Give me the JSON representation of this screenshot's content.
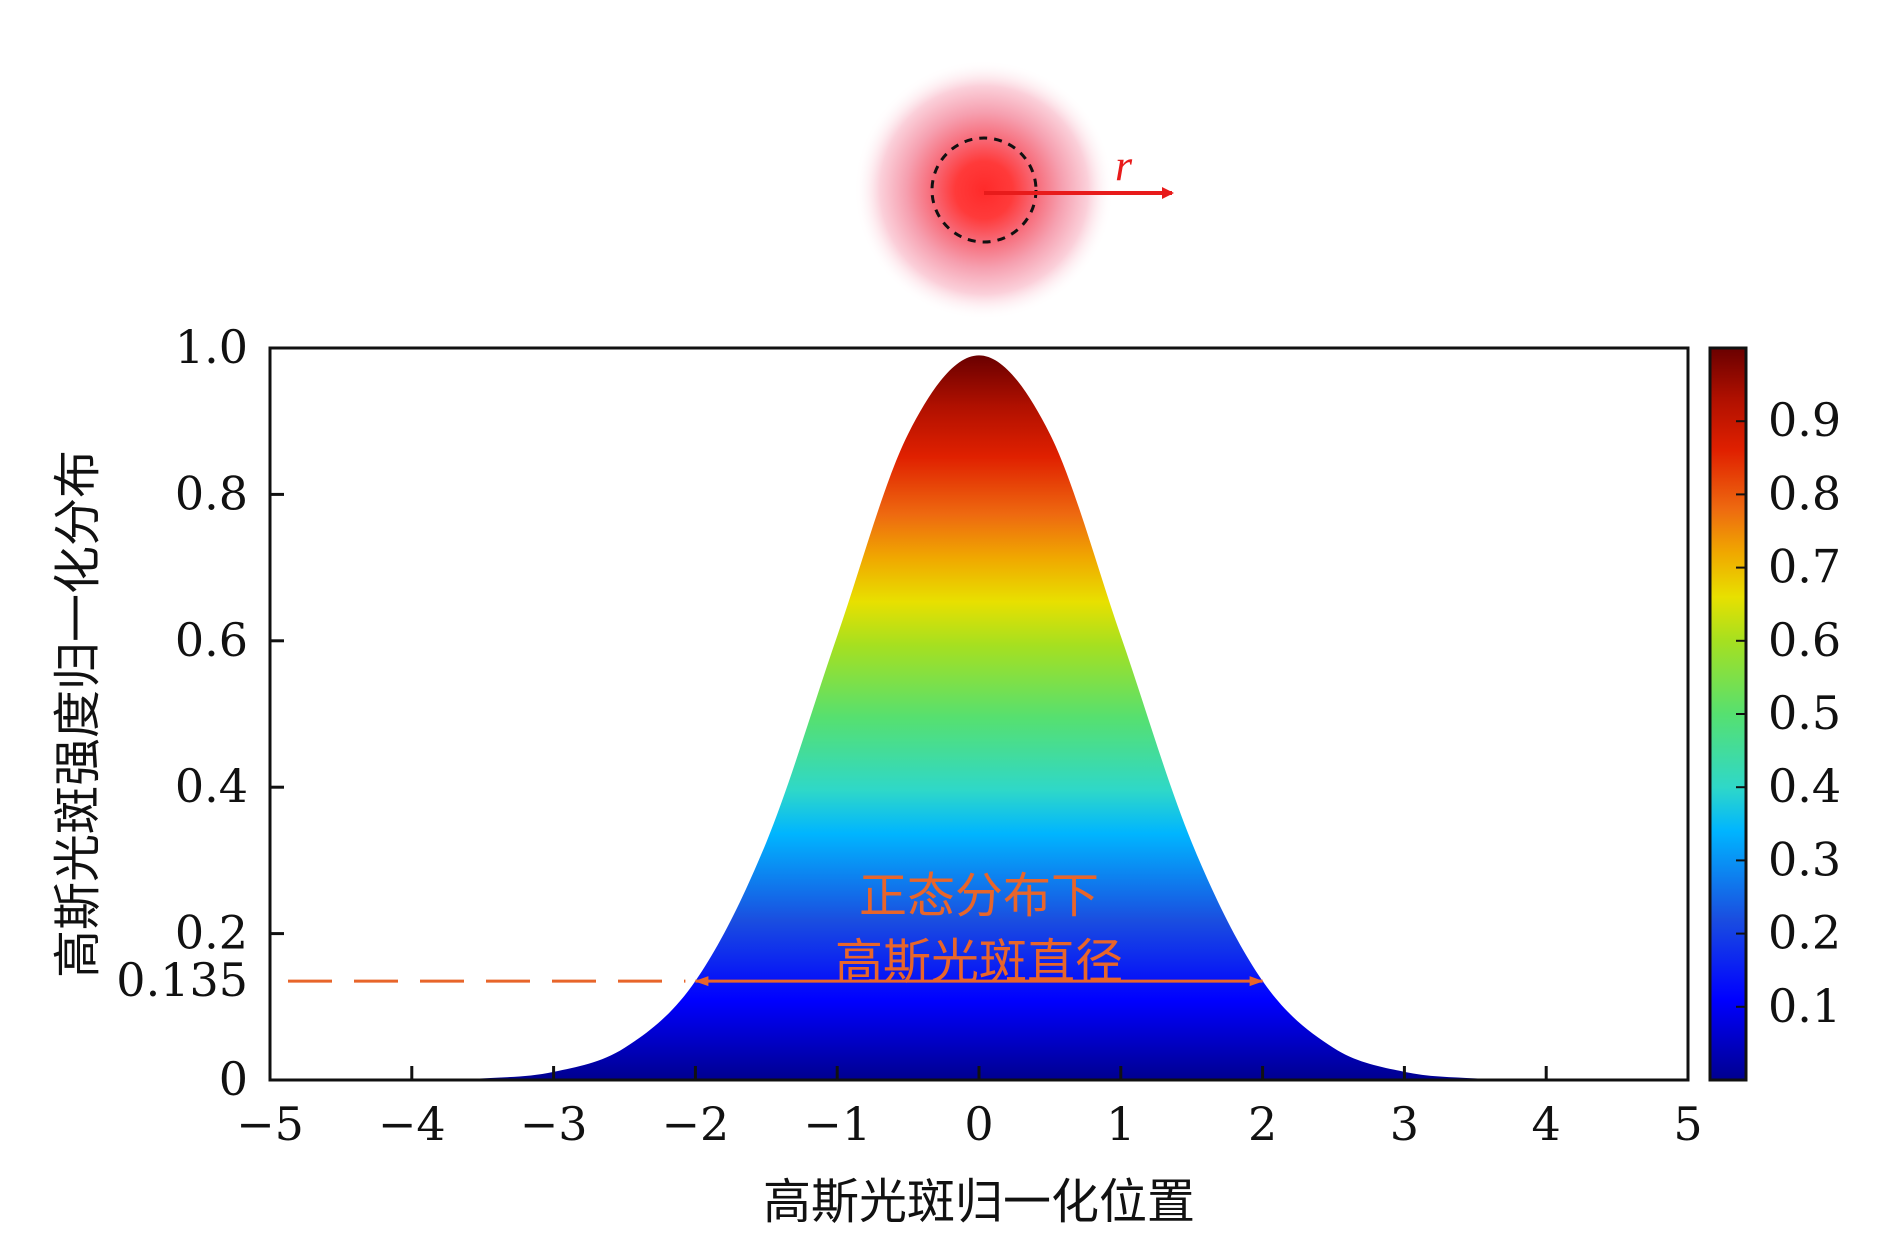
{
  "chart_data": {
    "type": "area",
    "title": "",
    "xlabel": "高斯光斑归一化位置",
    "ylabel": "高斯光斑强度归一化分布",
    "xlim": [
      -5,
      5
    ],
    "ylim": [
      0,
      1.0
    ],
    "x_ticks": [
      -5,
      -4,
      -3,
      -2,
      -1,
      0,
      1,
      2,
      3,
      4,
      5
    ],
    "x_tick_labels": [
      "−5",
      "−4",
      "−3",
      "−2",
      "−1",
      "0",
      "1",
      "2",
      "3",
      "4",
      "5"
    ],
    "y_ticks": [
      0,
      0.135,
      0.2,
      0.4,
      0.6,
      0.8,
      1.0
    ],
    "y_tick_labels": [
      "0",
      "0.135",
      "0.2",
      "0.4",
      "0.6",
      "0.8",
      "1.0"
    ],
    "series": [
      {
        "x": [
          -5,
          -4.5,
          -4,
          -3.5,
          -3,
          -2.5,
          -2,
          -1.5,
          -1,
          -0.5,
          0,
          0.5,
          1,
          1.5,
          2,
          2.5,
          3,
          3.5,
          4,
          4.5,
          5
        ],
        "y": [
          0.0,
          0.0,
          0.0003,
          0.0022,
          0.0111,
          0.0439,
          0.1353,
          0.3247,
          0.6065,
          0.8825,
          0.99,
          0.8825,
          0.6065,
          0.3247,
          0.1353,
          0.0439,
          0.0111,
          0.0022,
          0.0003,
          0.0,
          0.0
        ]
      }
    ],
    "threshold_line": {
      "y": 0.135,
      "style": "dashed",
      "color": "#e8652a"
    },
    "diameter_arrow": {
      "x_from": -2,
      "x_to": 2,
      "y": 0.135,
      "color": "#e8652a"
    },
    "annotation": {
      "line1": "正态分布下",
      "line2": "高斯光斑直径"
    },
    "colorbar": {
      "range": [
        0,
        1
      ],
      "ticks": [
        0.1,
        0.2,
        0.3,
        0.4,
        0.5,
        0.6,
        0.7,
        0.8,
        0.9
      ],
      "tick_labels": [
        "0.1",
        "0.2",
        "0.3",
        "0.4",
        "0.5",
        "0.6",
        "0.7",
        "0.8",
        "0.9"
      ],
      "colormap": "jet"
    },
    "grid": false,
    "inset": {
      "type": "gaussian-spot",
      "radius_label": "r",
      "color": "#e81b1b"
    }
  }
}
